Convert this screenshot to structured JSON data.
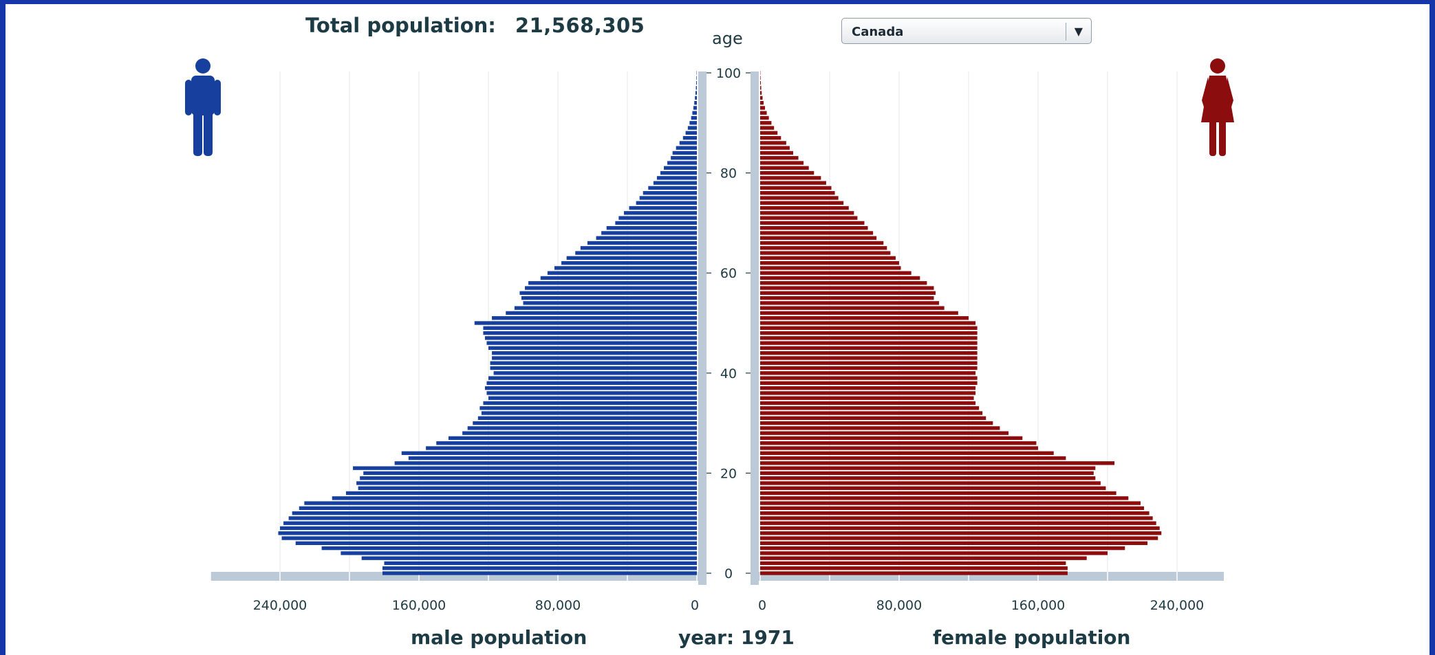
{
  "header": {
    "total_label": "Total population:",
    "total_value": "21,568,305",
    "country_selected": "Canada",
    "dropdown_arrow": "▼"
  },
  "footer": {
    "male_label": "male population",
    "year_label": "year: 1971",
    "female_label": "female population"
  },
  "icons": {
    "male": "male-person-icon",
    "female": "female-person-icon"
  },
  "colors": {
    "male": "#163f9e",
    "female": "#8b0d0d",
    "axis": "#bccad8",
    "text": "#1d3b45"
  },
  "chart_data": {
    "type": "bar",
    "orientation": "horizontal-pyramid",
    "title": "age",
    "xlabel_left": "male population",
    "xlabel_right": "female population",
    "age_range": [
      0,
      100
    ],
    "x_range": [
      0,
      240000
    ],
    "age_ticks": [
      "0",
      "20",
      "40",
      "60",
      "80",
      "100"
    ],
    "male_ticks": [
      "240,000",
      "160,000",
      "80,000",
      "0"
    ],
    "female_ticks": [
      "0",
      "80,000",
      "160,000",
      "240,000"
    ],
    "grid": true,
    "series": [
      {
        "name": "male population",
        "ages": [
          0,
          1,
          2,
          3,
          4,
          5,
          6,
          7,
          8,
          9,
          10,
          11,
          12,
          13,
          14,
          15,
          16,
          17,
          18,
          19,
          20,
          21,
          22,
          23,
          24,
          25,
          26,
          27,
          28,
          29,
          30,
          31,
          32,
          33,
          34,
          35,
          36,
          37,
          38,
          39,
          40,
          41,
          42,
          43,
          44,
          45,
          46,
          47,
          48,
          49,
          50,
          51,
          52,
          53,
          54,
          55,
          56,
          57,
          58,
          59,
          60,
          61,
          62,
          63,
          64,
          65,
          66,
          67,
          68,
          69,
          70,
          71,
          72,
          73,
          74,
          75,
          76,
          77,
          78,
          79,
          80,
          81,
          82,
          83,
          84,
          85,
          86,
          87,
          88,
          89,
          90,
          91,
          92,
          93,
          94,
          95,
          96,
          97,
          98,
          99,
          100
        ],
        "values": [
          181000,
          181000,
          180000,
          193000,
          205000,
          216000,
          231000,
          239000,
          241000,
          240000,
          238000,
          235000,
          233000,
          229000,
          226000,
          210000,
          202000,
          195000,
          196000,
          194000,
          192000,
          198000,
          174000,
          166000,
          170000,
          156000,
          150000,
          143000,
          135000,
          132000,
          129000,
          126000,
          124000,
          125000,
          123000,
          120000,
          121000,
          122000,
          121000,
          120000,
          117000,
          119000,
          119000,
          118000,
          118000,
          120000,
          121000,
          122000,
          123000,
          123000,
          128000,
          118000,
          110000,
          105000,
          100000,
          101000,
          102000,
          99000,
          97000,
          90000,
          86000,
          82000,
          78000,
          75000,
          70000,
          67000,
          63000,
          58000,
          55000,
          52000,
          47000,
          45000,
          42000,
          39000,
          35000,
          33000,
          31000,
          28000,
          25000,
          23000,
          21000,
          19000,
          17000,
          15000,
          14000,
          12000,
          10000,
          8000,
          6500,
          5200,
          4200,
          3300,
          2600,
          2000,
          1500,
          1100,
          800,
          550,
          380,
          260,
          180
        ]
      },
      {
        "name": "female population",
        "ages": [
          0,
          1,
          2,
          3,
          4,
          5,
          6,
          7,
          8,
          9,
          10,
          11,
          12,
          13,
          14,
          15,
          16,
          17,
          18,
          19,
          20,
          21,
          22,
          23,
          24,
          25,
          26,
          27,
          28,
          29,
          30,
          31,
          32,
          33,
          34,
          35,
          36,
          37,
          38,
          39,
          40,
          41,
          42,
          43,
          44,
          45,
          46,
          47,
          48,
          49,
          50,
          51,
          52,
          53,
          54,
          55,
          56,
          57,
          58,
          59,
          60,
          61,
          62,
          63,
          64,
          65,
          66,
          67,
          68,
          69,
          70,
          71,
          72,
          73,
          74,
          75,
          76,
          77,
          78,
          79,
          80,
          81,
          82,
          83,
          84,
          85,
          86,
          87,
          88,
          89,
          90,
          91,
          92,
          93,
          94,
          95,
          96,
          97,
          98,
          99,
          100
        ],
        "values": [
          177000,
          177000,
          176000,
          188000,
          200000,
          210000,
          223000,
          229000,
          231000,
          230000,
          228000,
          226000,
          224000,
          221000,
          219000,
          212000,
          205000,
          199000,
          196000,
          193000,
          192000,
          193000,
          204000,
          176000,
          169000,
          160000,
          159000,
          151000,
          143000,
          138000,
          134000,
          130000,
          128000,
          126000,
          124000,
          123000,
          124000,
          124000,
          125000,
          125000,
          124000,
          125000,
          125000,
          125000,
          125000,
          125000,
          125000,
          125000,
          125000,
          125000,
          124000,
          120000,
          114000,
          106000,
          103000,
          100000,
          101000,
          100000,
          96000,
          92000,
          87000,
          81000,
          80000,
          78000,
          75000,
          73000,
          71000,
          67000,
          65000,
          62000,
          60000,
          56000,
          54000,
          51000,
          48000,
          45000,
          43000,
          41000,
          38000,
          35000,
          31000,
          28000,
          25000,
          22000,
          19000,
          17000,
          15000,
          12000,
          10000,
          8000,
          6500,
          5000,
          3800,
          2800,
          2000,
          1400,
          900,
          600,
          380,
          240,
          160
        ]
      }
    ]
  }
}
